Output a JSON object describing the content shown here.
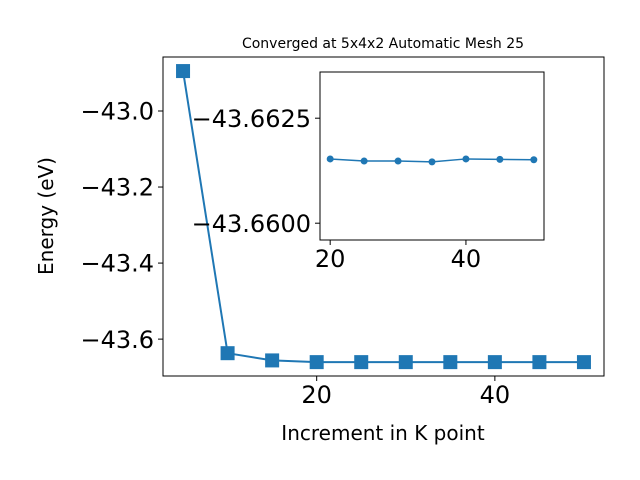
{
  "chart_data": [
    {
      "type": "line",
      "title": "Converged at 5x4x2 Automatic Mesh 25",
      "xlabel": "Increment in K point",
      "ylabel": "Energy (eV)",
      "xlim": [
        2.75,
        52.25
      ],
      "ylim": [
        -43.697,
        -42.858
      ],
      "x_ticks": [
        20,
        40
      ],
      "y_ticks": [
        -43.0,
        -43.2,
        -43.4,
        -43.6
      ],
      "x_tick_labels": [
        "20",
        "40"
      ],
      "y_tick_labels": [
        "−43.0",
        "−43.2",
        "−43.4",
        "−43.6"
      ],
      "marker": "square",
      "color": "#1f77b4",
      "series": [
        {
          "x": [
            5,
            10,
            15,
            20,
            25,
            30,
            35,
            40,
            45,
            50
          ],
          "values": [
            -42.895,
            -43.637,
            -43.656,
            -43.6605,
            -43.6605,
            -43.6605,
            -43.6605,
            -43.6605,
            -43.6605,
            -43.6605
          ]
        }
      ]
    },
    {
      "type": "line",
      "xlim": [
        18.5,
        51.5
      ],
      "ylim": [
        -43.6596,
        -43.6636
      ],
      "x_ticks": [
        20,
        40
      ],
      "y_ticks": [
        -43.6625,
        -43.66
      ],
      "x_tick_labels": [
        "20",
        "40"
      ],
      "y_tick_labels": [
        "−43.6625",
        "−43.6600"
      ],
      "marker": "circle",
      "color": "#1f77b4",
      "series": [
        {
          "x": [
            20,
            25,
            30,
            35,
            40,
            45,
            50
          ],
          "values": [
            -43.66153,
            -43.66148,
            -43.66148,
            -43.66146,
            -43.66153,
            -43.66152,
            -43.66151
          ]
        }
      ]
    }
  ]
}
